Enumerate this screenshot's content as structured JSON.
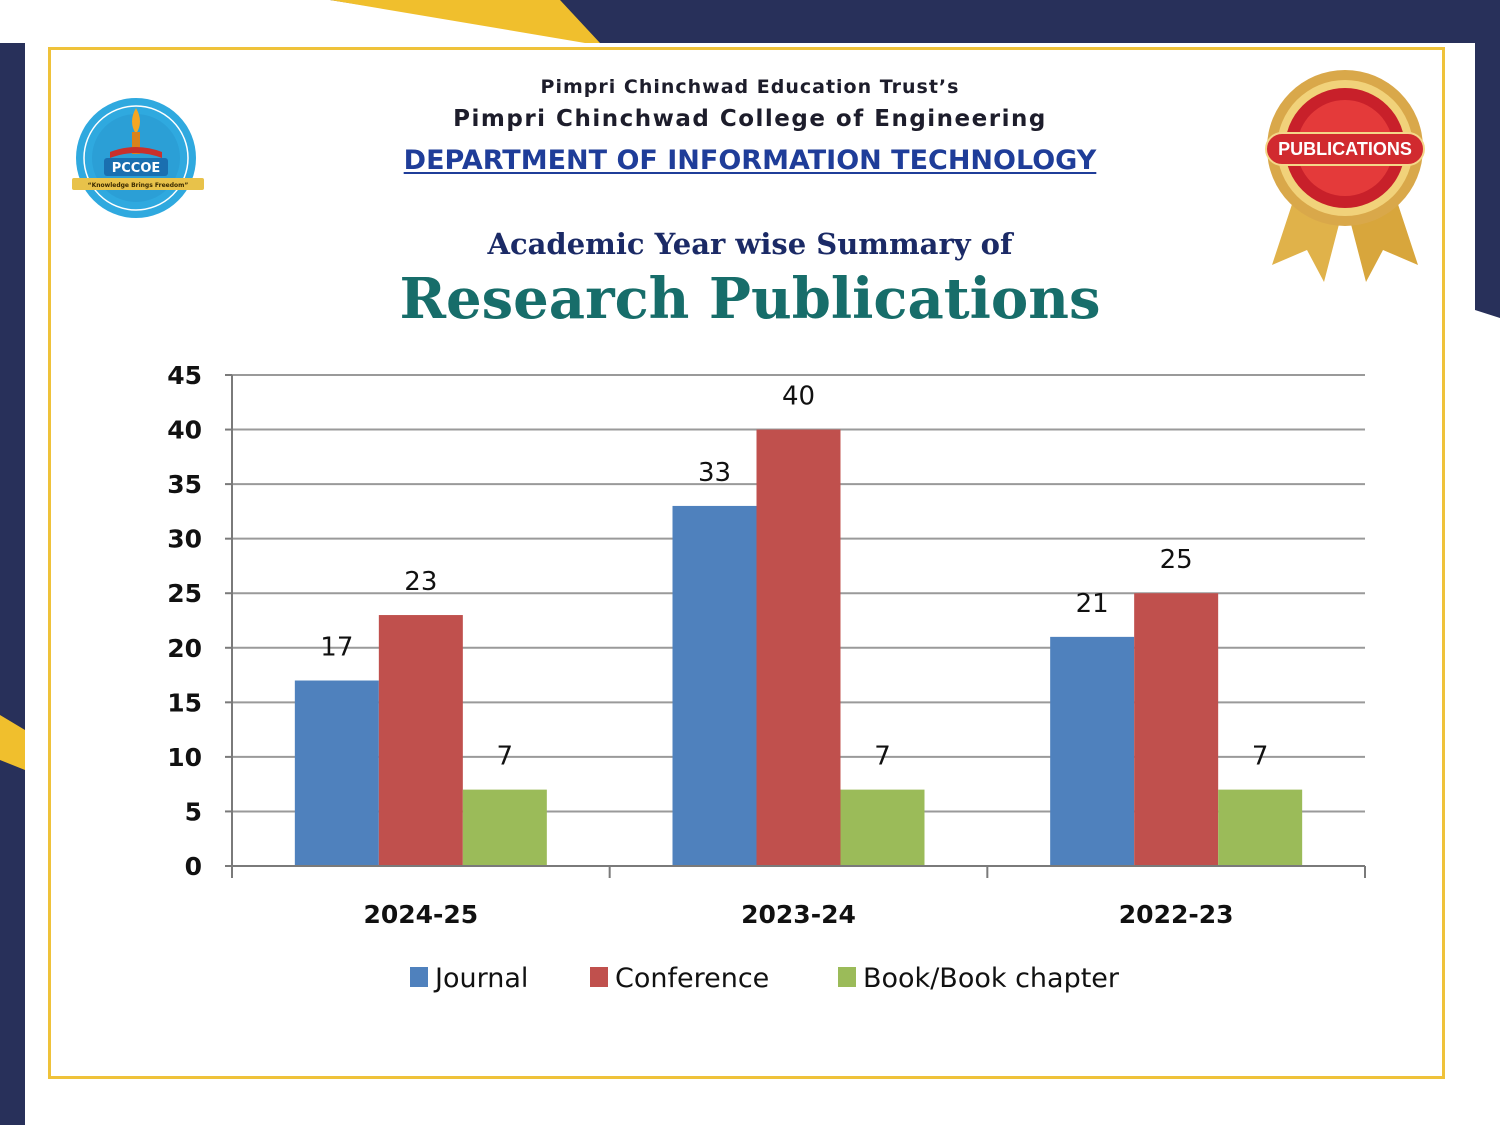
{
  "header": {
    "trust": "Pimpri Chinchwad Education Trust’s",
    "college": "Pimpri Chinchwad College of Engineering",
    "department": "DEPARTMENT OF INFORMATION TECHNOLOGY"
  },
  "subtitle": "Academic Year wise Summary of",
  "title": "Research Publications",
  "logo": {
    "text": "PCCOE",
    "motto": "“Knowledge Brings Freedom”"
  },
  "badge": {
    "text": "PUBLICATIONS"
  },
  "colors": {
    "navy": "#28305a",
    "gold": "#efc23a",
    "journal": "#4f81bd",
    "conference": "#c0504d",
    "book": "#9bbb59"
  },
  "chart_data": {
    "type": "bar",
    "categories": [
      "2024-25",
      "2023-24",
      "2022-23"
    ],
    "series": [
      {
        "name": "Journal",
        "values": [
          17,
          33,
          21
        ],
        "color": "#4f81bd"
      },
      {
        "name": "Conference",
        "values": [
          23,
          40,
          25
        ],
        "color": "#c0504d"
      },
      {
        "name": "Book/Book chapter",
        "values": [
          7,
          7,
          7
        ],
        "color": "#9bbb59"
      }
    ],
    "ylim": [
      0,
      45
    ],
    "yticks": [
      0,
      5,
      10,
      15,
      20,
      25,
      30,
      35,
      40,
      45
    ],
    "grid": true,
    "legend": "bottom",
    "data_labels": true
  }
}
